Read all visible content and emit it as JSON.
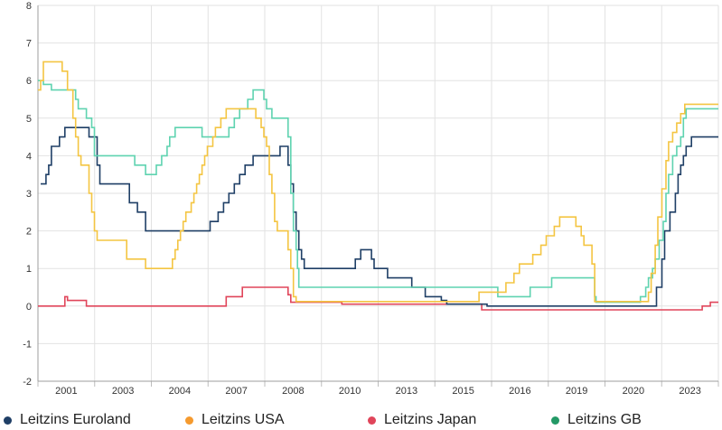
{
  "chart_data": {
    "type": "line",
    "title": "",
    "xlabel": "",
    "ylabel": "",
    "ylim": [
      -2,
      8
    ],
    "xlim": [
      1999.5,
      2024.8
    ],
    "y_ticks": [
      -2,
      -1,
      0,
      1,
      2,
      3,
      4,
      5,
      6,
      7,
      8
    ],
    "x_tick_labels": [
      "2001",
      "2003",
      "2004",
      "2007",
      "2008",
      "2010",
      "2013",
      "2015",
      "2016",
      "2019",
      "2020",
      "2023"
    ],
    "grid": true,
    "legend_position": "bottom",
    "series": [
      {
        "name": "Leitzins Euroland",
        "color": "#1f3f66",
        "step": true,
        "points": [
          [
            1999.6,
            3.25
          ],
          [
            1999.8,
            3.5
          ],
          [
            1999.9,
            3.75
          ],
          [
            2000.0,
            4.25
          ],
          [
            2000.3,
            4.5
          ],
          [
            2000.5,
            4.75
          ],
          [
            2001.4,
            4.5
          ],
          [
            2001.7,
            3.75
          ],
          [
            2001.8,
            3.25
          ],
          [
            2002.9,
            2.75
          ],
          [
            2003.2,
            2.5
          ],
          [
            2003.5,
            2.0
          ],
          [
            2005.9,
            2.25
          ],
          [
            2006.2,
            2.5
          ],
          [
            2006.4,
            2.75
          ],
          [
            2006.6,
            3.0
          ],
          [
            2006.8,
            3.25
          ],
          [
            2007.0,
            3.5
          ],
          [
            2007.2,
            3.75
          ],
          [
            2007.5,
            4.0
          ],
          [
            2008.5,
            4.25
          ],
          [
            2008.8,
            3.75
          ],
          [
            2008.9,
            3.25
          ],
          [
            2009.0,
            2.5
          ],
          [
            2009.1,
            2.0
          ],
          [
            2009.2,
            1.5
          ],
          [
            2009.3,
            1.25
          ],
          [
            2009.4,
            1.0
          ],
          [
            2011.3,
            1.25
          ],
          [
            2011.5,
            1.5
          ],
          [
            2011.9,
            1.25
          ],
          [
            2012.0,
            1.0
          ],
          [
            2012.5,
            0.75
          ],
          [
            2013.4,
            0.5
          ],
          [
            2013.9,
            0.25
          ],
          [
            2014.5,
            0.15
          ],
          [
            2014.7,
            0.05
          ],
          [
            2016.2,
            0.0
          ],
          [
            2022.5,
            0.5
          ],
          [
            2022.7,
            1.25
          ],
          [
            2022.8,
            2.0
          ],
          [
            2023.0,
            2.5
          ],
          [
            2023.2,
            3.0
          ],
          [
            2023.3,
            3.5
          ],
          [
            2023.4,
            3.75
          ],
          [
            2023.5,
            4.0
          ],
          [
            2023.6,
            4.25
          ],
          [
            2023.8,
            4.5
          ],
          [
            2024.8,
            4.5
          ]
        ]
      },
      {
        "name": "Leitzins USA",
        "color": "#f4c542",
        "step": true,
        "points": [
          [
            1999.5,
            5.75
          ],
          [
            1999.6,
            6.0
          ],
          [
            1999.7,
            6.5
          ],
          [
            2000.4,
            6.25
          ],
          [
            2000.6,
            5.75
          ],
          [
            2000.8,
            5.0
          ],
          [
            2000.9,
            4.5
          ],
          [
            2001.0,
            4.0
          ],
          [
            2001.1,
            3.75
          ],
          [
            2001.4,
            3.0
          ],
          [
            2001.5,
            2.5
          ],
          [
            2001.6,
            2.0
          ],
          [
            2001.7,
            1.75
          ],
          [
            2002.8,
            1.25
          ],
          [
            2003.5,
            1.0
          ],
          [
            2004.5,
            1.25
          ],
          [
            2004.6,
            1.5
          ],
          [
            2004.7,
            1.75
          ],
          [
            2004.8,
            2.0
          ],
          [
            2004.9,
            2.25
          ],
          [
            2005.0,
            2.5
          ],
          [
            2005.2,
            2.75
          ],
          [
            2005.3,
            3.0
          ],
          [
            2005.4,
            3.25
          ],
          [
            2005.5,
            3.5
          ],
          [
            2005.6,
            3.75
          ],
          [
            2005.7,
            4.0
          ],
          [
            2005.8,
            4.25
          ],
          [
            2006.0,
            4.5
          ],
          [
            2006.1,
            4.75
          ],
          [
            2006.3,
            5.0
          ],
          [
            2006.5,
            5.25
          ],
          [
            2007.6,
            5.0
          ],
          [
            2007.8,
            4.75
          ],
          [
            2007.9,
            4.5
          ],
          [
            2008.0,
            4.25
          ],
          [
            2008.1,
            3.5
          ],
          [
            2008.2,
            3.0
          ],
          [
            2008.3,
            2.25
          ],
          [
            2008.4,
            2.0
          ],
          [
            2008.8,
            1.5
          ],
          [
            2008.9,
            1.0
          ],
          [
            2009.0,
            0.25
          ],
          [
            2009.1,
            0.12
          ],
          [
            2015.9,
            0.37
          ],
          [
            2016.9,
            0.62
          ],
          [
            2017.2,
            0.87
          ],
          [
            2017.4,
            1.12
          ],
          [
            2017.9,
            1.37
          ],
          [
            2018.2,
            1.62
          ],
          [
            2018.4,
            1.87
          ],
          [
            2018.7,
            2.12
          ],
          [
            2018.9,
            2.37
          ],
          [
            2019.5,
            2.12
          ],
          [
            2019.7,
            1.87
          ],
          [
            2019.8,
            1.62
          ],
          [
            2020.1,
            1.12
          ],
          [
            2020.2,
            0.12
          ],
          [
            2022.2,
            0.37
          ],
          [
            2022.3,
            0.87
          ],
          [
            2022.45,
            1.62
          ],
          [
            2022.55,
            2.37
          ],
          [
            2022.7,
            3.12
          ],
          [
            2022.85,
            3.87
          ],
          [
            2022.95,
            4.37
          ],
          [
            2023.1,
            4.62
          ],
          [
            2023.25,
            4.87
          ],
          [
            2023.4,
            5.12
          ],
          [
            2023.55,
            5.37
          ],
          [
            2024.8,
            5.37
          ]
        ]
      },
      {
        "name": "Leitzins Japan",
        "color": "#e0455a",
        "step": true,
        "points": [
          [
            1999.5,
            0.0
          ],
          [
            2000.5,
            0.25
          ],
          [
            2000.6,
            0.15
          ],
          [
            2001.3,
            0.0
          ],
          [
            2006.5,
            0.25
          ],
          [
            2007.1,
            0.5
          ],
          [
            2008.8,
            0.3
          ],
          [
            2008.9,
            0.1
          ],
          [
            2010.8,
            0.05
          ],
          [
            2016.0,
            -0.1
          ],
          [
            2024.2,
            0.0
          ],
          [
            2024.5,
            0.1
          ],
          [
            2024.8,
            0.1
          ]
        ]
      },
      {
        "name": "Leitzins GB",
        "color": "#5fd3b0",
        "step": true,
        "points": [
          [
            1999.5,
            6.0
          ],
          [
            1999.7,
            5.9
          ],
          [
            2000.0,
            5.75
          ],
          [
            2000.9,
            5.5
          ],
          [
            2001.0,
            5.25
          ],
          [
            2001.3,
            5.0
          ],
          [
            2001.5,
            4.75
          ],
          [
            2001.6,
            4.0
          ],
          [
            2003.1,
            3.75
          ],
          [
            2003.5,
            3.5
          ],
          [
            2003.9,
            3.75
          ],
          [
            2004.1,
            4.0
          ],
          [
            2004.3,
            4.25
          ],
          [
            2004.4,
            4.5
          ],
          [
            2004.6,
            4.75
          ],
          [
            2005.6,
            4.5
          ],
          [
            2006.6,
            4.75
          ],
          [
            2006.8,
            5.0
          ],
          [
            2007.0,
            5.25
          ],
          [
            2007.3,
            5.5
          ],
          [
            2007.5,
            5.75
          ],
          [
            2007.9,
            5.5
          ],
          [
            2008.0,
            5.25
          ],
          [
            2008.2,
            5.0
          ],
          [
            2008.8,
            4.5
          ],
          [
            2008.9,
            3.0
          ],
          [
            2009.0,
            2.0
          ],
          [
            2009.1,
            1.5
          ],
          [
            2009.15,
            1.0
          ],
          [
            2009.2,
            0.5
          ],
          [
            2016.6,
            0.25
          ],
          [
            2017.8,
            0.5
          ],
          [
            2018.6,
            0.75
          ],
          [
            2020.2,
            0.25
          ],
          [
            2020.25,
            0.1
          ],
          [
            2021.9,
            0.25
          ],
          [
            2022.1,
            0.5
          ],
          [
            2022.2,
            0.75
          ],
          [
            2022.35,
            1.0
          ],
          [
            2022.45,
            1.25
          ],
          [
            2022.6,
            1.75
          ],
          [
            2022.75,
            2.25
          ],
          [
            2022.85,
            3.0
          ],
          [
            2022.95,
            3.5
          ],
          [
            2023.1,
            4.0
          ],
          [
            2023.25,
            4.25
          ],
          [
            2023.4,
            4.5
          ],
          [
            2023.5,
            5.0
          ],
          [
            2023.6,
            5.25
          ],
          [
            2024.8,
            5.25
          ]
        ]
      }
    ]
  }
}
